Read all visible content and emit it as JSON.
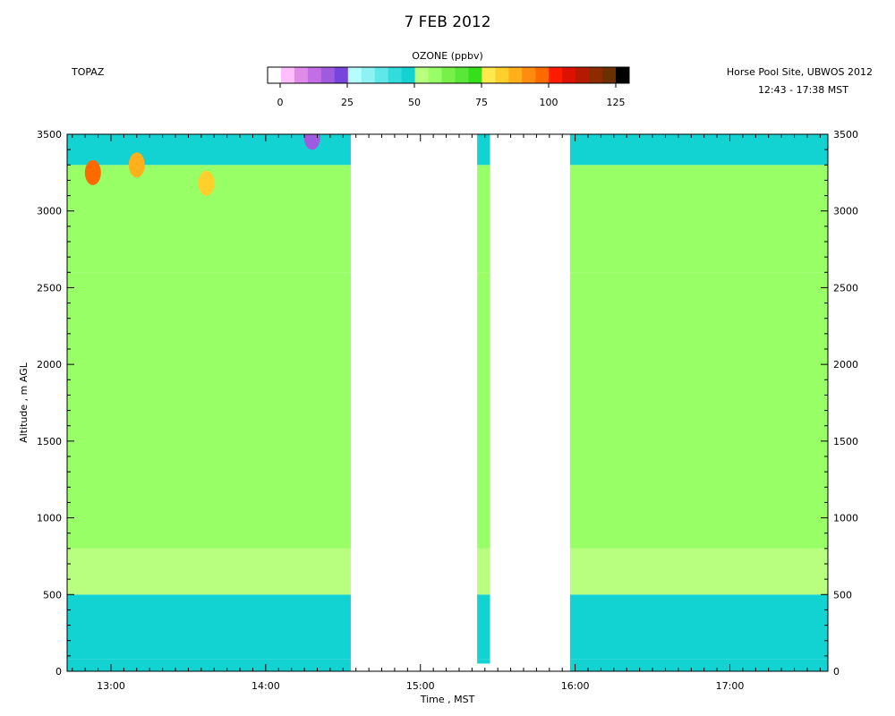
{
  "header": {
    "date_title": "7 FEB 2012",
    "instrument": "TOPAZ",
    "site": "Horse Pool Site, UBWOS 2012",
    "time_range": "12:43 - 17:38 MST"
  },
  "colorbar": {
    "title": "OZONE (ppbv)",
    "ticks": [
      "0",
      "25",
      "50",
      "75",
      "100",
      "125"
    ],
    "colors": [
      "#ffffff",
      "#ffbfff",
      "#e08be8",
      "#c46ee6",
      "#9f5be0",
      "#7744dd",
      "#b4ffff",
      "#8ff2f2",
      "#5ee8e8",
      "#33dcdc",
      "#12d2d2",
      "#b8ff80",
      "#99ff66",
      "#77f14a",
      "#5ae838",
      "#33e01a",
      "#ffe84d",
      "#ffd02b",
      "#ffb01a",
      "#ff8c10",
      "#ff6a00",
      "#ff1a00",
      "#dd1100",
      "#b31a00",
      "#8e2a00",
      "#6a3000",
      "#000000"
    ]
  },
  "chart_data": {
    "type": "heatmap",
    "title": "7 FEB 2012",
    "xlabel": "Time , MST",
    "ylabel": "Altitude , m AGL",
    "x_ticks": [
      "13:00",
      "14:00",
      "15:00",
      "16:00",
      "17:00"
    ],
    "y_ticks": [
      "0",
      "500",
      "1000",
      "1500",
      "2000",
      "2500",
      "3000",
      "3500"
    ],
    "xlim": [
      "12:43",
      "17:38"
    ],
    "ylim": [
      0,
      3500
    ],
    "z_label": "OZONE (ppbv)",
    "z_range": [
      0,
      125
    ],
    "blocks": [
      {
        "t_start": "12:43",
        "t_end": "14:33",
        "z_bottom": 0,
        "z_top": 3500
      },
      {
        "t_start": "15:22",
        "t_end": "15:27",
        "z_bottom": 50,
        "z_top": 3500
      },
      {
        "t_start": "15:58",
        "t_end": "17:38",
        "z_bottom": 0,
        "z_top": 3500
      }
    ],
    "layers": [
      {
        "z_bottom": 0,
        "z_top": 80,
        "ozone_ppbv": 48
      },
      {
        "z_bottom": 80,
        "z_top": 500,
        "ozone_ppbv": 45
      },
      {
        "z_bottom": 500,
        "z_top": 800,
        "ozone_ppbv": 52
      },
      {
        "z_bottom": 800,
        "z_top": 2600,
        "ozone_ppbv": 58
      },
      {
        "z_bottom": 2600,
        "z_top": 3300,
        "ozone_ppbv": 55
      },
      {
        "z_bottom": 3300,
        "z_top": 3500,
        "ozone_ppbv": 45
      }
    ],
    "hotspots": [
      {
        "time": "12:53",
        "altitude": 3250,
        "ozone_ppbv": 95
      },
      {
        "time": "13:10",
        "altitude": 3300,
        "ozone_ppbv": 85
      },
      {
        "time": "13:37",
        "altitude": 3180,
        "ozone_ppbv": 80
      },
      {
        "time": "14:18",
        "altitude": 3480,
        "ozone_ppbv": 15
      }
    ]
  }
}
